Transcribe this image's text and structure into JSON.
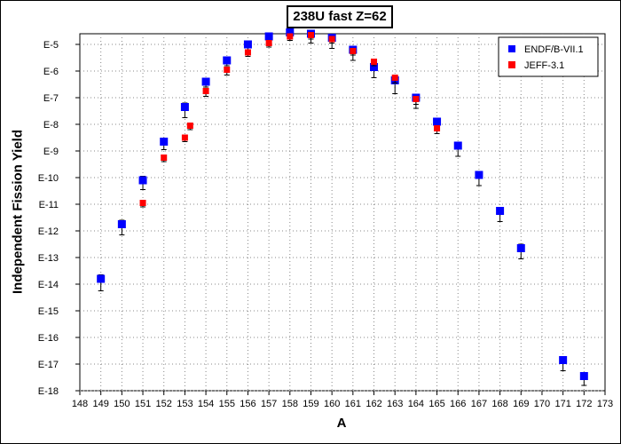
{
  "chart_data": {
    "type": "scatter",
    "title": "238U fast Z=62",
    "xlabel": "A",
    "ylabel": "Independent Fission Yield",
    "xlim": [
      148,
      173
    ],
    "ylim_exponent": [
      -18,
      -4.6
    ],
    "y_scale": "log",
    "xticks": [
      "148",
      "149",
      "150",
      "151",
      "152",
      "153",
      "154",
      "155",
      "156",
      "157",
      "158",
      "159",
      "160",
      "161",
      "162",
      "163",
      "164",
      "165",
      "166",
      "167",
      "168",
      "169",
      "170",
      "171",
      "172",
      "173"
    ],
    "yticks": [
      {
        "exp": -5,
        "label": "E-5"
      },
      {
        "exp": -6,
        "label": "E-6"
      },
      {
        "exp": -7,
        "label": "E-7"
      },
      {
        "exp": -8,
        "label": "E-8"
      },
      {
        "exp": -9,
        "label": "E-9"
      },
      {
        "exp": -10,
        "label": "E-10"
      },
      {
        "exp": -11,
        "label": "E-11"
      },
      {
        "exp": -12,
        "label": "E-12"
      },
      {
        "exp": -13,
        "label": "E-13"
      },
      {
        "exp": -14,
        "label": "E-14"
      },
      {
        "exp": -15,
        "label": "E-15"
      },
      {
        "exp": -16,
        "label": "E-16"
      },
      {
        "exp": -17,
        "label": "E-17"
      },
      {
        "exp": -18,
        "label": "E-18"
      }
    ],
    "grid": true,
    "legend_position": "top-right",
    "series": [
      {
        "name": "ENDF/B-VII.1",
        "color": "#0000ff",
        "marker": "square",
        "points": [
          {
            "x": 149,
            "log10y": -13.8,
            "err_lo": 0.45,
            "err_hi": 0.15
          },
          {
            "x": 150,
            "log10y": -11.75,
            "err_lo": 0.4,
            "err_hi": 0.15
          },
          {
            "x": 151,
            "log10y": -10.1,
            "err_lo": 0.35,
            "err_hi": 0.15
          },
          {
            "x": 152,
            "log10y": -8.65,
            "err_lo": 0.3,
            "err_hi": 0.1
          },
          {
            "x": 153,
            "log10y": -7.35,
            "err_lo": 0.4,
            "err_hi": 0.15
          },
          {
            "x": 154,
            "log10y": -6.4,
            "err_lo": 0.2,
            "err_hi": 0.1
          },
          {
            "x": 155,
            "log10y": -5.6,
            "err_lo": 0.2,
            "err_hi": 0.1
          },
          {
            "x": 156,
            "log10y": -5.0,
            "err_lo": 0.2,
            "err_hi": 0.08
          },
          {
            "x": 157,
            "log10y": -4.7,
            "err_lo": 0.25,
            "err_hi": 0.08
          },
          {
            "x": 158,
            "log10y": -4.55,
            "err_lo": 0.3,
            "err_hi": 0.1
          },
          {
            "x": 159,
            "log10y": -4.6,
            "err_lo": 0.35,
            "err_hi": 0.1
          },
          {
            "x": 160,
            "log10y": -4.75,
            "err_lo": 0.4,
            "err_hi": 0.1
          },
          {
            "x": 161,
            "log10y": -5.2,
            "err_lo": 0.4,
            "err_hi": 0.1
          },
          {
            "x": 162,
            "log10y": -5.85,
            "err_lo": 0.4,
            "err_hi": 0.1
          },
          {
            "x": 163,
            "log10y": -6.35,
            "err_lo": 0.5,
            "err_hi": 0.1
          },
          {
            "x": 164,
            "log10y": -7.0,
            "err_lo": 0.4,
            "err_hi": 0.1
          },
          {
            "x": 165,
            "log10y": -7.9,
            "err_lo": 0.35,
            "err_hi": 0.1
          },
          {
            "x": 166,
            "log10y": -8.8,
            "err_lo": 0.4,
            "err_hi": 0.1
          },
          {
            "x": 167,
            "log10y": -9.9,
            "err_lo": 0.4,
            "err_hi": 0.1
          },
          {
            "x": 168,
            "log10y": -11.25,
            "err_lo": 0.4,
            "err_hi": 0.1
          },
          {
            "x": 169,
            "log10y": -12.65,
            "err_lo": 0.4,
            "err_hi": 0.15
          },
          {
            "x": 171,
            "log10y": -16.85,
            "err_lo": 0.4,
            "err_hi": 0.1
          },
          {
            "x": 172,
            "log10y": -17.45,
            "err_lo": 0.35,
            "err_hi": 0.1
          }
        ]
      },
      {
        "name": "JEFF-3.1",
        "color": "#ff0000",
        "marker": "square",
        "points": [
          {
            "x": 151,
            "log10y": -10.95,
            "err_lo": 0.15,
            "err_hi": 0.1
          },
          {
            "x": 152,
            "log10y": -9.25,
            "err_lo": 0.15,
            "err_hi": 0.1
          },
          {
            "x": 153,
            "log10y": -8.5,
            "err_lo": 0.15,
            "err_hi": 0.1
          },
          {
            "x": 153.25,
            "log10y": -8.05,
            "err_lo": 0.15,
            "err_hi": 0.08
          },
          {
            "x": 154,
            "log10y": -6.75,
            "err_lo": 0.2,
            "err_hi": 0.08
          },
          {
            "x": 155,
            "log10y": -5.95,
            "err_lo": 0.2,
            "err_hi": 0.08
          },
          {
            "x": 156,
            "log10y": -5.3,
            "err_lo": 0.15,
            "err_hi": 0.08
          },
          {
            "x": 157,
            "log10y": -4.95,
            "err_lo": 0.15,
            "err_hi": 0.08
          },
          {
            "x": 158,
            "log10y": -4.7,
            "err_lo": 0.15,
            "err_hi": 0.08
          },
          {
            "x": 159,
            "log10y": -4.65,
            "err_lo": 0.15,
            "err_hi": 0.08
          },
          {
            "x": 160,
            "log10y": -4.8,
            "err_lo": 0.15,
            "err_hi": 0.08
          },
          {
            "x": 161,
            "log10y": -5.25,
            "err_lo": 0.15,
            "err_hi": 0.08
          },
          {
            "x": 162,
            "log10y": -5.65,
            "err_lo": 0.15,
            "err_hi": 0.08
          },
          {
            "x": 163,
            "log10y": -6.25,
            "err_lo": 0.2,
            "err_hi": 0.08
          },
          {
            "x": 164,
            "log10y": -7.05,
            "err_lo": 0.2,
            "err_hi": 0.08
          },
          {
            "x": 165,
            "log10y": -8.15,
            "err_lo": 0.2,
            "err_hi": 0.08
          }
        ]
      }
    ]
  }
}
